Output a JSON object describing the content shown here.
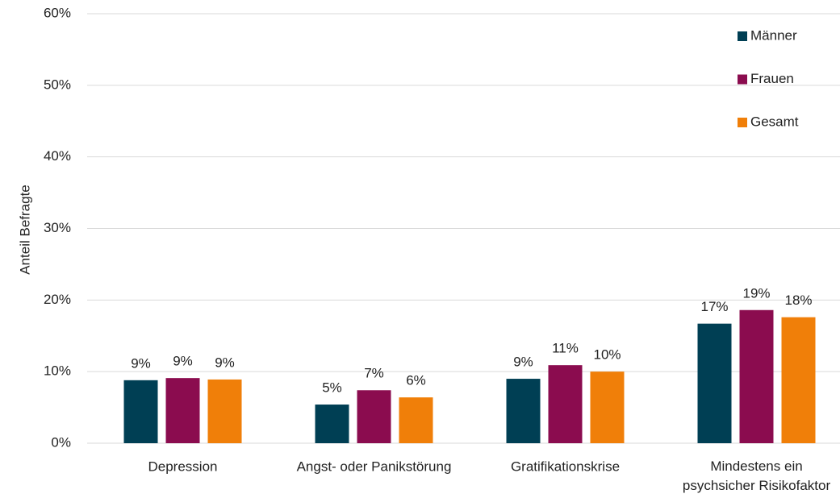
{
  "chart_data": {
    "type": "bar",
    "y_label": "Anteil Befragte",
    "categories": [
      "Depression",
      "Angst- oder Panikstörung",
      "Gratifikationskrise",
      "Mindestens ein\npsychsicher Risikofaktor"
    ],
    "series": [
      {
        "name": "Männer",
        "color": "#003f54",
        "values": [
          8.8,
          5.4,
          9.0,
          16.7
        ],
        "value_labels": [
          "9%",
          "5%",
          "9%",
          "17%"
        ]
      },
      {
        "name": "Frauen",
        "color": "#8b0c4f",
        "values": [
          9.1,
          7.4,
          10.9,
          18.6
        ],
        "value_labels": [
          "9%",
          "7%",
          "11%",
          "19%"
        ]
      },
      {
        "name": "Gesamt",
        "color": "#f07f09",
        "values": [
          8.9,
          6.4,
          10.0,
          17.6
        ],
        "value_labels": [
          "9%",
          "6%",
          "10%",
          "18%"
        ]
      }
    ],
    "ylim": [
      0,
      60
    ],
    "yticks": [
      {
        "value": 0,
        "label": "0%"
      },
      {
        "value": 10,
        "label": "10%"
      },
      {
        "value": 20,
        "label": "20%"
      },
      {
        "value": 30,
        "label": "30%"
      },
      {
        "value": 40,
        "label": "40%"
      },
      {
        "value": 50,
        "label": "50%"
      },
      {
        "value": 60,
        "label": "60%"
      }
    ],
    "grid": true,
    "legend": "top-right"
  }
}
